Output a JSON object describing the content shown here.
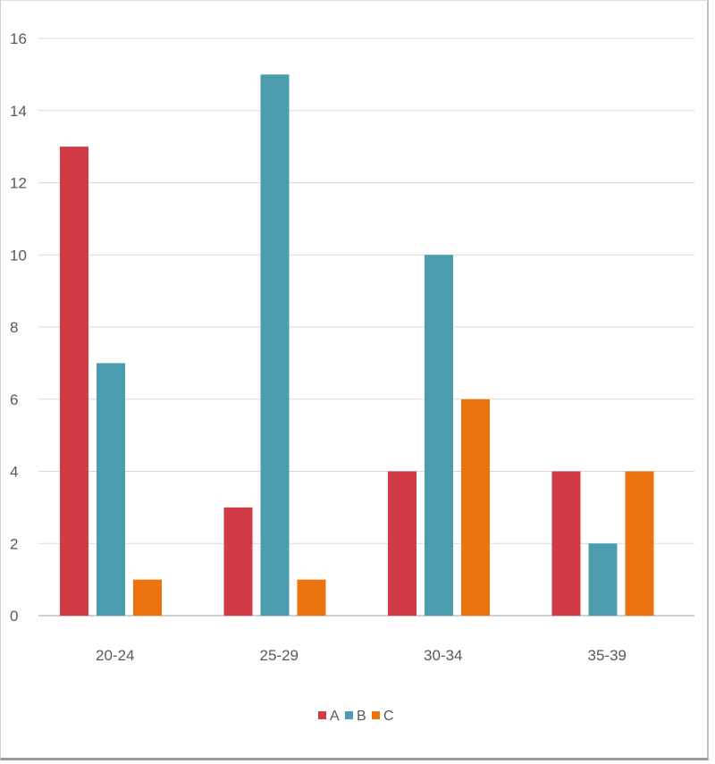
{
  "chart_data": {
    "type": "bar",
    "categories": [
      "20-24",
      "25-29",
      "30-34",
      "35-39"
    ],
    "series": [
      {
        "name": "A",
        "values": [
          13,
          3,
          4,
          4
        ],
        "color": "#d23a45"
      },
      {
        "name": "B",
        "values": [
          7,
          15,
          10,
          2
        ],
        "color": "#4b9cac"
      },
      {
        "name": "C",
        "values": [
          1,
          1,
          6,
          4
        ],
        "color": "#ec7410"
      }
    ],
    "ylim": [
      0,
      16
    ],
    "yticks": [
      "0",
      "2",
      "4",
      "6",
      "8",
      "10",
      "12",
      "14",
      "16"
    ],
    "grid": true,
    "legend": "bottom-center",
    "gridline_color": "#d9d9d9",
    "axis_color": "#bfbfbf"
  }
}
